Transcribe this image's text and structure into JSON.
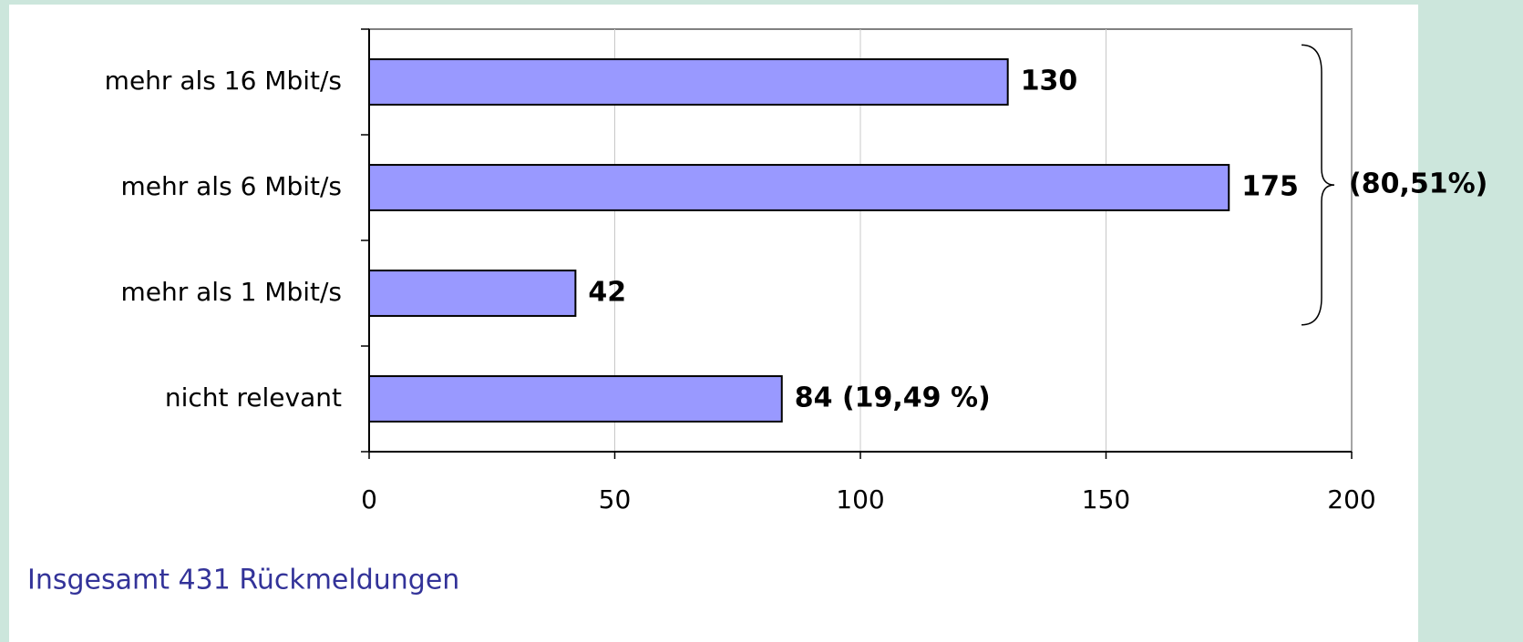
{
  "chart_data": {
    "type": "bar",
    "orientation": "horizontal",
    "categories": [
      "mehr als 16 Mbit/s",
      "mehr als 6 Mbit/s",
      "mehr als 1 Mbit/s",
      "nicht relevant"
    ],
    "values": [
      130,
      175,
      42,
      84
    ],
    "value_labels": [
      "130",
      "175",
      "42",
      "84 (19,49 %)"
    ],
    "color": "#9999ff",
    "xlim": [
      0,
      200
    ],
    "xticks": [
      0,
      50,
      100,
      150,
      200
    ],
    "grid": true,
    "annotation": "(80,51%)",
    "footer": "Insgesamt 431 Rückmeldungen"
  }
}
